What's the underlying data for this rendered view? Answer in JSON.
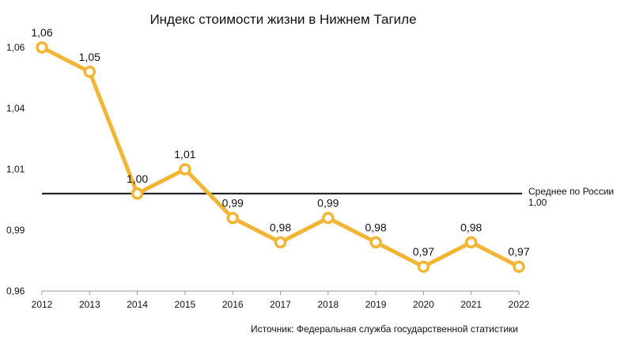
{
  "chart_data": {
    "type": "line",
    "title": "Индекс стоимости жизни в Нижнем Тагиле",
    "xlabel": "",
    "ylabel": "",
    "x": [
      "2012",
      "2013",
      "2014",
      "2015",
      "2016",
      "2017",
      "2018",
      "2019",
      "2020",
      "2021",
      "2022"
    ],
    "series": [
      {
        "values": [
          1.06,
          1.05,
          1.0,
          1.01,
          0.99,
          0.98,
          0.99,
          0.98,
          0.97,
          0.98,
          0.97
        ],
        "data_labels": [
          "1,06",
          "1,05",
          "1,00",
          "1,01",
          "0,99",
          "0,98",
          "0,99",
          "0,98",
          "0,97",
          "0,98",
          "0,97"
        ]
      }
    ],
    "ylim": [
      0.96,
      1.06
    ],
    "y_ticks": [
      0.96,
      0.985,
      1.01,
      1.035,
      1.06
    ],
    "y_tick_labels": [
      "0,96",
      "0,99",
      "1,01",
      "1,04",
      "1,06"
    ],
    "reference_line": {
      "value": 1.0,
      "label": "Среднее по России",
      "value_label": "1,00"
    },
    "grid": false,
    "legend": "none",
    "source": "Источник: Федеральная служба государственной статистики",
    "colors": {
      "line": "#f2b535",
      "marker_fill": "#ffffff",
      "reference": "#111111",
      "axis": "#999999"
    }
  }
}
